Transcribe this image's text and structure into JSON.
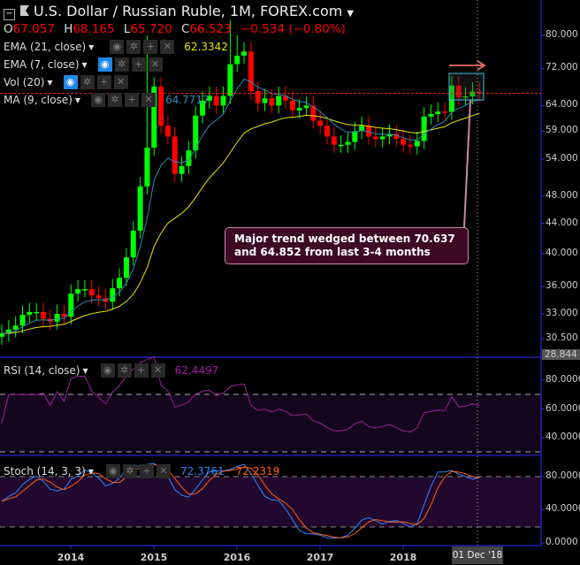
{
  "header": {
    "title": "U.S. Dollar / Russian Ruble, 1M, FOREX.com",
    "o_label": "O",
    "o": "67.057",
    "h_label": "H",
    "h": "68.165",
    "l_label": "L",
    "l": "65.720",
    "c_label": "C",
    "c": "66.523",
    "change": "−0.534 (−0.80%)"
  },
  "indicators": [
    {
      "label": "EMA (21, close)",
      "value": "62.3342",
      "color": "#e6e600"
    },
    {
      "label": "EMA (7, close)",
      "value": "",
      "color": "#2a8ab8"
    },
    {
      "label": "Vol (20)",
      "value": ""
    },
    {
      "label": "MA (9, close)",
      "value": "64.7717",
      "color": "#2a8ab8"
    }
  ],
  "rsi": {
    "label": "RSI (14, close)",
    "value": "62.4497",
    "color": "#a020a0"
  },
  "stoch": {
    "label": "Stoch (14, 3, 3)",
    "k": "72.3761",
    "d": "72.2319",
    "k_color": "#2f86ff",
    "d_color": "#ff6010"
  },
  "price_axis": [
    "80.000",
    "72.000",
    "64.000",
    "59.000",
    "54.000",
    "48.000",
    "44.000",
    "40.000",
    "36.000",
    "33.000",
    "30.500"
  ],
  "price_marker": "28.844",
  "rsi_axis": [
    "80.0000",
    "60.0000",
    "40.0000"
  ],
  "stoch_axis": [
    "80.0000",
    "40.0000",
    "0.0000"
  ],
  "time_axis": [
    "2014",
    "2015",
    "2016",
    "2017",
    "2018"
  ],
  "crosshair_date": "01 Dec '18",
  "annotation": "Major trend wedged between 70.637 and 64.852 from last 3-4 months",
  "chart_data": {
    "type": "candlestick",
    "start": "2013-03",
    "interval": "1M",
    "scale": "log",
    "closes": [
      31.0,
      31.4,
      31.8,
      32.9,
      33.2,
      33.2,
      32.5,
      32.2,
      33.0,
      32.7,
      35.2,
      35.7,
      35.7,
      35.0,
      34.7,
      34.3,
      35.8,
      37.0,
      39.5,
      43.0,
      49.5,
      56.0,
      68,
      60,
      58,
      51.5,
      52.8,
      55.5,
      62,
      65,
      66,
      64,
      66,
      73,
      75,
      76,
      67,
      64.5,
      65.5,
      64,
      66,
      65,
      63,
      63.5,
      64,
      61,
      60,
      58,
      56.5,
      56.5,
      57,
      59,
      60,
      58,
      57.5,
      58,
      58.5,
      57.6,
      56.5,
      56.2,
      57.2,
      61.8,
      62.3,
      62.8,
      62.7,
      68.2,
      65.7,
      65.9,
      66.9,
      66.523
    ],
    "highs_override": {
      "21": 80,
      "33": 84,
      "34": 80
    }
  }
}
